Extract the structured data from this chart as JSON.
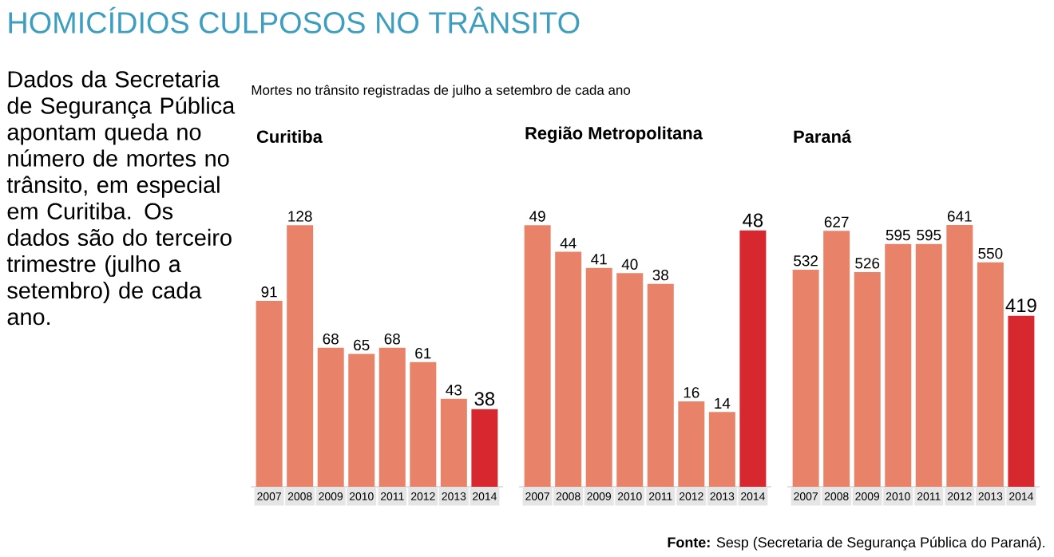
{
  "chart_data": [
    {
      "type": "other",
      "title": "HOMICÍDIOS CULPOSOS NO TRÂNSITO",
      "annotations": [
        "Dados da Secretaria de Segurança Pública apontam queda no número de mortes no trânsito, em especial em Curitiba. Os dados são do terceiro trimestre (julho a setembro) de cada ano.",
        "Mortes no trânsito registradas de julho a setembro de cada ano",
        "**Fonte:** Sesp (Secretaria de Segurança Pública do Paraná)."
      ]
    },
    {
      "type": "bar",
      "title": "Curitiba",
      "categories": [
        "2007",
        "2008",
        "2009",
        "2010",
        "2011",
        "2012",
        "2013",
        "2014"
      ],
      "values": [
        91,
        128,
        68,
        65,
        68,
        61,
        43,
        38
      ],
      "colors": [
        "#e8836a",
        "#e8836a",
        "#e8836a",
        "#e8836a",
        "#e8836a",
        "#e8836a",
        "#e8836a",
        "#d7282f"
      ],
      "data_labels": true
    },
    {
      "type": "bar",
      "title": "Região Metropolitana",
      "categories": [
        "2007",
        "2008",
        "2009",
        "2010",
        "2011",
        "2012",
        "2013",
        "2014"
      ],
      "values": [
        49,
        44,
        41,
        40,
        38,
        16,
        14,
        48
      ],
      "colors": [
        "#e8836a",
        "#e8836a",
        "#e8836a",
        "#e8836a",
        "#e8836a",
        "#e8836a",
        "#e8836a",
        "#d7282f"
      ],
      "data_labels": true
    },
    {
      "type": "bar",
      "title": "Paraná",
      "categories": [
        "2007",
        "2008",
        "2009",
        "2010",
        "2011",
        "2012",
        "2013",
        "2014"
      ],
      "values": [
        532,
        627,
        526,
        595,
        595,
        641,
        550,
        419
      ],
      "colors": [
        "#e8836a",
        "#e8836a",
        "#e8836a",
        "#e8836a",
        "#e8836a",
        "#e8836a",
        "#e8836a",
        "#d7282f"
      ],
      "data_labels": true
    }
  ]
}
